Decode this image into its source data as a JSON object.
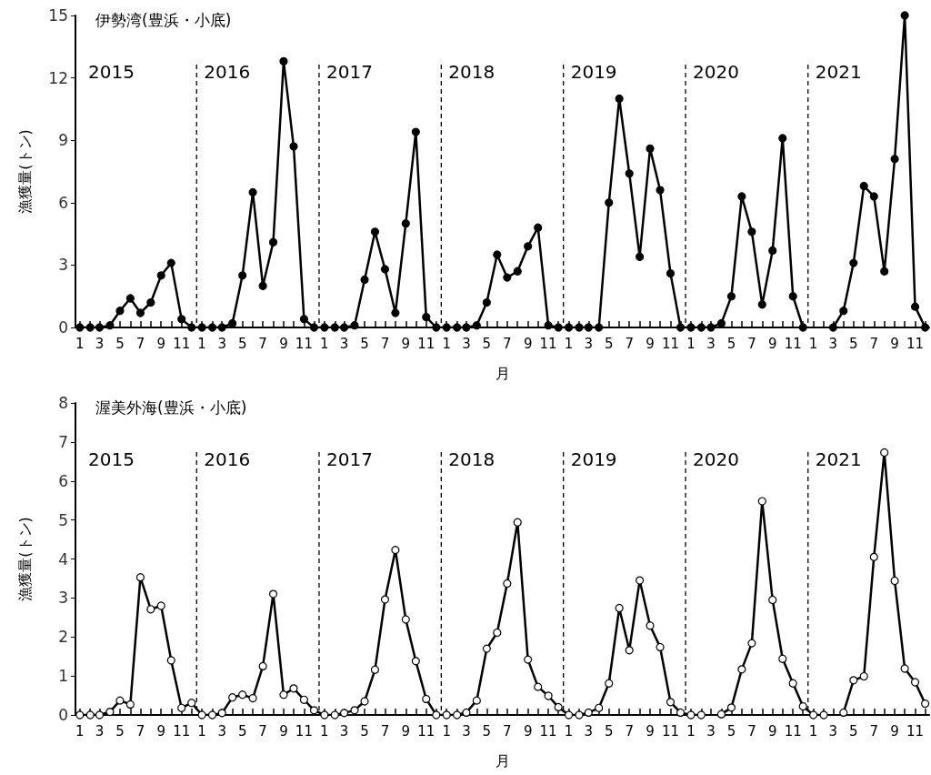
{
  "chart_data": [
    {
      "type": "line",
      "title": "伊勢湾(豊浜・小底)",
      "xlabel": "月",
      "ylabel": "漁獲量(トン)",
      "x": [
        "2015-01",
        "2015-02",
        "2015-03",
        "2015-04",
        "2015-05",
        "2015-06",
        "2015-07",
        "2015-08",
        "2015-09",
        "2015-10",
        "2015-11",
        "2015-12",
        "2016-01",
        "2016-02",
        "2016-03",
        "2016-04",
        "2016-05",
        "2016-06",
        "2016-07",
        "2016-08",
        "2016-09",
        "2016-10",
        "2016-11",
        "2016-12",
        "2017-01",
        "2017-02",
        "2017-03",
        "2017-04",
        "2017-05",
        "2017-06",
        "2017-07",
        "2017-08",
        "2017-09",
        "2017-10",
        "2017-11",
        "2017-12",
        "2018-01",
        "2018-02",
        "2018-03",
        "2018-04",
        "2018-05",
        "2018-06",
        "2018-07",
        "2018-08",
        "2018-09",
        "2018-10",
        "2018-11",
        "2018-12",
        "2019-01",
        "2019-02",
        "2019-03",
        "2019-04",
        "2019-05",
        "2019-06",
        "2019-07",
        "2019-08",
        "2019-09",
        "2019-10",
        "2019-11",
        "2019-12",
        "2020-01",
        "2020-02",
        "2020-03",
        "2020-04",
        "2020-05",
        "2020-06",
        "2020-07",
        "2020-08",
        "2020-09",
        "2020-10",
        "2020-11",
        "2020-12",
        "2021-01",
        "2021-02",
        "2021-03",
        "2021-04",
        "2021-05",
        "2021-06",
        "2021-07",
        "2021-08",
        "2021-09",
        "2021-10",
        "2021-11",
        "2021-12"
      ],
      "series": [
        {
          "color": "#000000",
          "values": [
            0,
            0,
            0,
            0.1,
            0.8,
            1.4,
            0.7,
            1.2,
            2.5,
            3.1,
            0.4,
            0,
            0,
            0,
            0,
            0.2,
            2.5,
            6.5,
            2.0,
            4.1,
            12.8,
            8.7,
            0.4,
            0,
            0,
            0,
            0,
            0.1,
            2.3,
            4.6,
            2.8,
            0.7,
            5.0,
            9.4,
            0.5,
            0,
            0,
            0,
            0,
            0.1,
            1.2,
            3.5,
            2.4,
            2.7,
            3.9,
            4.8,
            0.1,
            0,
            0,
            0,
            0,
            0,
            6.0,
            11.0,
            7.4,
            3.4,
            8.6,
            6.6,
            2.6,
            0,
            0,
            0,
            0,
            0.2,
            1.5,
            6.3,
            4.6,
            1.1,
            3.7,
            9.1,
            1.5,
            0,
            null,
            null,
            0,
            0.8,
            3.1,
            6.8,
            6.3,
            2.7,
            8.1,
            15.0,
            1.0,
            0
          ]
        }
      ],
      "xlim": [
        "2014-12-19",
        "2021-12-13"
      ],
      "xticks": [
        {
          "value": "2015-01",
          "label": "1"
        },
        {
          "value": "2015-02",
          "label": null
        },
        {
          "value": "2015-03",
          "label": "3"
        },
        {
          "value": "2015-04",
          "label": null
        },
        {
          "value": "2015-05",
          "label": "5"
        },
        {
          "value": "2015-06",
          "label": null
        },
        {
          "value": "2015-07",
          "label": "7"
        },
        {
          "value": "2015-08",
          "label": null
        },
        {
          "value": "2015-09",
          "label": "9"
        },
        {
          "value": "2015-10",
          "label": null
        },
        {
          "value": "2015-11",
          "label": "11"
        },
        {
          "value": "2015-12",
          "label": null
        },
        {
          "value": "2016-01",
          "label": "1"
        },
        {
          "value": "2016-02",
          "label": null
        },
        {
          "value": "2016-03",
          "label": "3"
        },
        {
          "value": "2016-04",
          "label": null
        },
        {
          "value": "2016-05",
          "label": "5"
        },
        {
          "value": "2016-06",
          "label": null
        },
        {
          "value": "2016-07",
          "label": "7"
        },
        {
          "value": "2016-08",
          "label": null
        },
        {
          "value": "2016-09",
          "label": "9"
        },
        {
          "value": "2016-10",
          "label": null
        },
        {
          "value": "2016-11",
          "label": "11"
        },
        {
          "value": "2016-12",
          "label": null
        },
        {
          "value": "2017-01",
          "label": "1"
        },
        {
          "value": "2017-02",
          "label": null
        },
        {
          "value": "2017-03",
          "label": "3"
        },
        {
          "value": "2017-04",
          "label": null
        },
        {
          "value": "2017-05",
          "label": "5"
        },
        {
          "value": "2017-06",
          "label": null
        },
        {
          "value": "2017-07",
          "label": "7"
        },
        {
          "value": "2017-08",
          "label": null
        },
        {
          "value": "2017-09",
          "label": "9"
        },
        {
          "value": "2017-10",
          "label": null
        },
        {
          "value": "2017-11",
          "label": "11"
        },
        {
          "value": "2017-12",
          "label": null
        },
        {
          "value": "2018-01",
          "label": "1"
        },
        {
          "value": "2018-02",
          "label": null
        },
        {
          "value": "2018-03",
          "label": "3"
        },
        {
          "value": "2018-04",
          "label": null
        },
        {
          "value": "2018-05",
          "label": "5"
        },
        {
          "value": "2018-06",
          "label": null
        },
        {
          "value": "2018-07",
          "label": "7"
        },
        {
          "value": "2018-08",
          "label": null
        },
        {
          "value": "2018-09",
          "label": "9"
        },
        {
          "value": "2018-10",
          "label": null
        },
        {
          "value": "2018-11",
          "label": "11"
        },
        {
          "value": "2018-12",
          "label": null
        },
        {
          "value": "2019-01",
          "label": "1"
        },
        {
          "value": "2019-02",
          "label": null
        },
        {
          "value": "2019-03",
          "label": "3"
        },
        {
          "value": "2019-04",
          "label": null
        },
        {
          "value": "2019-05",
          "label": "5"
        },
        {
          "value": "2019-06",
          "label": null
        },
        {
          "value": "2019-07",
          "label": "7"
        },
        {
          "value": "2019-08",
          "label": null
        },
        {
          "value": "2019-09",
          "label": "9"
        },
        {
          "value": "2019-10",
          "label": null
        },
        {
          "value": "2019-11",
          "label": "11"
        },
        {
          "value": "2019-12",
          "label": null
        },
        {
          "value": "2020-01",
          "label": "1"
        },
        {
          "value": "2020-02",
          "label": null
        },
        {
          "value": "2020-03",
          "label": "3"
        },
        {
          "value": "2020-04",
          "label": null
        },
        {
          "value": "2020-05",
          "label": "5"
        },
        {
          "value": "2020-06",
          "label": null
        },
        {
          "value": "2020-07",
          "label": "7"
        },
        {
          "value": "2020-08",
          "label": null
        },
        {
          "value": "2020-09",
          "label": "9"
        },
        {
          "value": "2020-10",
          "label": null
        },
        {
          "value": "2020-11",
          "label": "11"
        },
        {
          "value": "2020-12",
          "label": null
        },
        {
          "value": "2021-01",
          "label": "1"
        },
        {
          "value": "2021-02",
          "label": null
        },
        {
          "value": "2021-03",
          "label": "3"
        },
        {
          "value": "2021-04",
          "label": null
        },
        {
          "value": "2021-05",
          "label": "5"
        },
        {
          "value": "2021-06",
          "label": null
        },
        {
          "value": "2021-07",
          "label": "7"
        },
        {
          "value": "2021-08",
          "label": null
        },
        {
          "value": "2021-09",
          "label": "9"
        },
        {
          "value": "2021-10",
          "label": null
        },
        {
          "value": "2021-11",
          "label": "11"
        },
        {
          "value": "2021-12",
          "label": null
        }
      ],
      "ylim": [
        0,
        15
      ],
      "yticks": [
        0,
        3,
        6,
        9,
        12,
        15
      ],
      "ref_lines": [
        {
          "axis": "x",
          "value": "2015-12-16",
          "label": "2016",
          "line_style": "dashed"
        },
        {
          "axis": "x",
          "value": "2016-12-16",
          "label": "2017",
          "line_style": "dashed"
        },
        {
          "axis": "x",
          "value": "2017-12-16",
          "label": "2018",
          "line_style": "dashed"
        },
        {
          "axis": "x",
          "value": "2018-12-16",
          "label": "2019",
          "line_style": "dashed"
        },
        {
          "axis": "x",
          "value": "2019-12-16",
          "label": "2020",
          "line_style": "dashed"
        },
        {
          "axis": "x",
          "value": "2020-12-16",
          "label": "2021",
          "line_style": "dashed"
        }
      ],
      "annotations": [
        "2015"
      ],
      "marker": "circle",
      "line_style": "solid"
    },
    {
      "type": "line",
      "title": "渥美外海(豊浜・小底)",
      "xlabel": "月",
      "ylabel": "漁獲量(トン)",
      "x": [
        "2015-01",
        "2015-02",
        "2015-03",
        "2015-04",
        "2015-05",
        "2015-06",
        "2015-07",
        "2015-08",
        "2015-09",
        "2015-10",
        "2015-11",
        "2015-12",
        "2016-01",
        "2016-02",
        "2016-03",
        "2016-04",
        "2016-05",
        "2016-06",
        "2016-07",
        "2016-08",
        "2016-09",
        "2016-10",
        "2016-11",
        "2016-12",
        "2017-01",
        "2017-02",
        "2017-03",
        "2017-04",
        "2017-05",
        "2017-06",
        "2017-07",
        "2017-08",
        "2017-09",
        "2017-10",
        "2017-11",
        "2017-12",
        "2018-01",
        "2018-02",
        "2018-03",
        "2018-04",
        "2018-05",
        "2018-06",
        "2018-07",
        "2018-08",
        "2018-09",
        "2018-10",
        "2018-11",
        "2018-12",
        "2019-01",
        "2019-02",
        "2019-03",
        "2019-04",
        "2019-05",
        "2019-06",
        "2019-07",
        "2019-08",
        "2019-09",
        "2019-10",
        "2019-11",
        "2019-12",
        "2020-01",
        "2020-02",
        "2020-03",
        "2020-04",
        "2020-05",
        "2020-06",
        "2020-07",
        "2020-08",
        "2020-09",
        "2020-10",
        "2020-11",
        "2020-12",
        "2021-01",
        "2021-02",
        "2021-03",
        "2021-04",
        "2021-05",
        "2021-06",
        "2021-07",
        "2021-08",
        "2021-09",
        "2021-10",
        "2021-11",
        "2021-12"
      ],
      "series": [
        {
          "color": "#000000",
          "values": [
            0,
            0,
            0,
            0.08,
            0.37,
            0.27,
            3.53,
            2.71,
            2.8,
            1.4,
            0.18,
            0.31,
            0,
            0,
            0.05,
            0.45,
            0.52,
            0.43,
            1.25,
            3.1,
            0.52,
            0.68,
            0.39,
            0.12,
            0,
            0,
            0.05,
            0.12,
            0.35,
            1.16,
            2.96,
            4.23,
            2.45,
            1.38,
            0.41,
            0,
            0,
            0,
            0.06,
            0.37,
            1.7,
            2.11,
            3.37,
            4.94,
            1.42,
            0.72,
            0.49,
            0.2,
            0,
            0,
            0.06,
            0.18,
            0.81,
            2.74,
            1.66,
            3.45,
            2.29,
            1.74,
            0.33,
            0.06,
            0,
            0,
            null,
            0.02,
            0.19,
            1.17,
            1.84,
            5.48,
            2.95,
            1.44,
            0.81,
            0.22,
            0,
            0,
            null,
            0.06,
            0.89,
            0.99,
            4.05,
            6.73,
            3.44,
            1.19,
            0.84,
            0.29
          ]
        }
      ],
      "xlim": [
        "2014-12-19",
        "2021-12-13"
      ],
      "xticks": [
        {
          "value": "2015-01",
          "label": "1"
        },
        {
          "value": "2015-02",
          "label": null
        },
        {
          "value": "2015-03",
          "label": "3"
        },
        {
          "value": "2015-04",
          "label": null
        },
        {
          "value": "2015-05",
          "label": "5"
        },
        {
          "value": "2015-06",
          "label": null
        },
        {
          "value": "2015-07",
          "label": "7"
        },
        {
          "value": "2015-08",
          "label": null
        },
        {
          "value": "2015-09",
          "label": "9"
        },
        {
          "value": "2015-10",
          "label": null
        },
        {
          "value": "2015-11",
          "label": "11"
        },
        {
          "value": "2015-12",
          "label": null
        },
        {
          "value": "2016-01",
          "label": "1"
        },
        {
          "value": "2016-02",
          "label": null
        },
        {
          "value": "2016-03",
          "label": "3"
        },
        {
          "value": "2016-04",
          "label": null
        },
        {
          "value": "2016-05",
          "label": "5"
        },
        {
          "value": "2016-06",
          "label": null
        },
        {
          "value": "2016-07",
          "label": "7"
        },
        {
          "value": "2016-08",
          "label": null
        },
        {
          "value": "2016-09",
          "label": "9"
        },
        {
          "value": "2016-10",
          "label": null
        },
        {
          "value": "2016-11",
          "label": "11"
        },
        {
          "value": "2016-12",
          "label": null
        },
        {
          "value": "2017-01",
          "label": "1"
        },
        {
          "value": "2017-02",
          "label": null
        },
        {
          "value": "2017-03",
          "label": "3"
        },
        {
          "value": "2017-04",
          "label": null
        },
        {
          "value": "2017-05",
          "label": "5"
        },
        {
          "value": "2017-06",
          "label": null
        },
        {
          "value": "2017-07",
          "label": "7"
        },
        {
          "value": "2017-08",
          "label": null
        },
        {
          "value": "2017-09",
          "label": "9"
        },
        {
          "value": "2017-10",
          "label": null
        },
        {
          "value": "2017-11",
          "label": "11"
        },
        {
          "value": "2017-12",
          "label": null
        },
        {
          "value": "2018-01",
          "label": "1"
        },
        {
          "value": "2018-02",
          "label": null
        },
        {
          "value": "2018-03",
          "label": "3"
        },
        {
          "value": "2018-04",
          "label": null
        },
        {
          "value": "2018-05",
          "label": "5"
        },
        {
          "value": "2018-06",
          "label": null
        },
        {
          "value": "2018-07",
          "label": "7"
        },
        {
          "value": "2018-08",
          "label": null
        },
        {
          "value": "2018-09",
          "label": "9"
        },
        {
          "value": "2018-10",
          "label": null
        },
        {
          "value": "2018-11",
          "label": "11"
        },
        {
          "value": "2018-12",
          "label": null
        },
        {
          "value": "2019-01",
          "label": "1"
        },
        {
          "value": "2019-02",
          "label": null
        },
        {
          "value": "2019-03",
          "label": "3"
        },
        {
          "value": "2019-04",
          "label": null
        },
        {
          "value": "2019-05",
          "label": "5"
        },
        {
          "value": "2019-06",
          "label": null
        },
        {
          "value": "2019-07",
          "label": "7"
        },
        {
          "value": "2019-08",
          "label": null
        },
        {
          "value": "2019-09",
          "label": "9"
        },
        {
          "value": "2019-10",
          "label": null
        },
        {
          "value": "2019-11",
          "label": "11"
        },
        {
          "value": "2019-12",
          "label": null
        },
        {
          "value": "2020-01",
          "label": "1"
        },
        {
          "value": "2020-02",
          "label": null
        },
        {
          "value": "2020-03",
          "label": "3"
        },
        {
          "value": "2020-04",
          "label": null
        },
        {
          "value": "2020-05",
          "label": "5"
        },
        {
          "value": "2020-06",
          "label": null
        },
        {
          "value": "2020-07",
          "label": "7"
        },
        {
          "value": "2020-08",
          "label": null
        },
        {
          "value": "2020-09",
          "label": "9"
        },
        {
          "value": "2020-10",
          "label": null
        },
        {
          "value": "2020-11",
          "label": "11"
        },
        {
          "value": "2020-12",
          "label": null
        },
        {
          "value": "2021-01",
          "label": "1"
        },
        {
          "value": "2021-02",
          "label": null
        },
        {
          "value": "2021-03",
          "label": "3"
        },
        {
          "value": "2021-04",
          "label": null
        },
        {
          "value": "2021-05",
          "label": "5"
        },
        {
          "value": "2021-06",
          "label": null
        },
        {
          "value": "2021-07",
          "label": "7"
        },
        {
          "value": "2021-08",
          "label": null
        },
        {
          "value": "2021-09",
          "label": "9"
        },
        {
          "value": "2021-10",
          "label": null
        },
        {
          "value": "2021-11",
          "label": "11"
        },
        {
          "value": "2021-12",
          "label": null
        }
      ],
      "ylim": [
        0,
        8
      ],
      "yticks": [
        0,
        1,
        2,
        3,
        4,
        5,
        6,
        7,
        8
      ],
      "ref_lines": [
        {
          "axis": "x",
          "value": "2015-12-16",
          "label": "2016",
          "line_style": "dashed"
        },
        {
          "axis": "x",
          "value": "2016-12-16",
          "label": "2017",
          "line_style": "dashed"
        },
        {
          "axis": "x",
          "value": "2017-12-16",
          "label": "2018",
          "line_style": "dashed"
        },
        {
          "axis": "x",
          "value": "2018-12-16",
          "label": "2019",
          "line_style": "dashed"
        },
        {
          "axis": "x",
          "value": "2019-12-16",
          "label": "2020",
          "line_style": "dashed"
        },
        {
          "axis": "x",
          "value": "2020-12-16",
          "label": "2021",
          "line_style": "dashed"
        }
      ],
      "annotations": [
        "2015"
      ],
      "marker": "circle",
      "line_style": "solid"
    }
  ]
}
